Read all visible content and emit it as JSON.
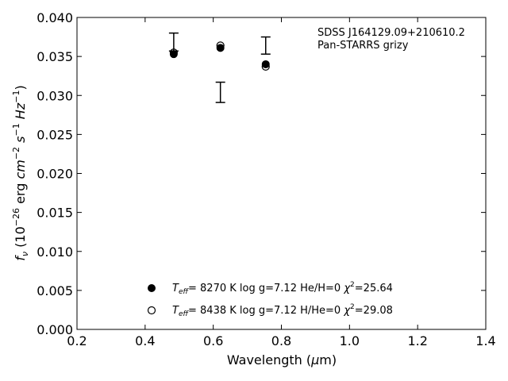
{
  "chart_data": {
    "type": "scatter",
    "annotation": [
      "SDSS J164129.09+210610.2",
      "Pan-STARRS grizy"
    ],
    "xlabel": "Wavelength (μm)",
    "ylabel": "f_ν (10^-26 erg cm^-2 s^-1 Hz^-1)",
    "xlim": [
      0.2,
      1.4
    ],
    "ylim": [
      0.0,
      0.04
    ],
    "x_ticks": [
      "0.2",
      "0.4",
      "0.6",
      "0.8",
      "1.0",
      "1.2",
      "1.4"
    ],
    "y_ticks": [
      "0.000",
      "0.005",
      "0.010",
      "0.015",
      "0.020",
      "0.025",
      "0.030",
      "0.035",
      "0.040"
    ],
    "grid": false,
    "legend_position": "bottom-center",
    "observed": {
      "x": [
        0.484,
        0.621,
        0.754
      ],
      "y_low": [
        0.0357,
        0.0291,
        0.0353
      ],
      "y_high": [
        0.038,
        0.0317,
        0.0375
      ]
    },
    "series": [
      {
        "marker": "filled-circle",
        "x": [
          0.484,
          0.621,
          0.754
        ],
        "y": [
          0.0353,
          0.0361,
          0.034
        ],
        "legend_text": "T_eff= 8270 K log g=7.12 He/H=0 χ²=25.64",
        "teff": "8270 K",
        "logg": "log g=7.12",
        "comp": "He/H=0",
        "chi2": "=25.64"
      },
      {
        "marker": "open-circle",
        "x": [
          0.484,
          0.621,
          0.754
        ],
        "y": [
          0.0355,
          0.0364,
          0.0337
        ],
        "legend_text": "T_eff= 8438 K log g=7.12 H/He=0 χ²=29.08",
        "teff": "8438 K",
        "logg": "log g=7.12",
        "comp": "H/He=0",
        "chi2": "=29.08"
      }
    ]
  }
}
